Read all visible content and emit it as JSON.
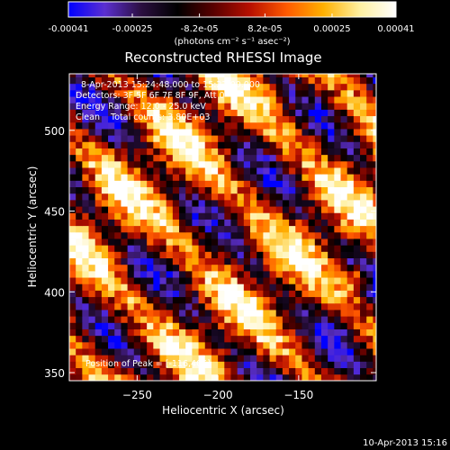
{
  "figure": {
    "title": "Reconstructed RHESSI Image",
    "timestamp": "10-Apr-2013 15:16"
  },
  "colorbar": {
    "ticks": [
      "-0.00041",
      "-0.00025",
      "-8.2e-05",
      "8.2e-05",
      "0.00025",
      "0.00041"
    ],
    "range": [
      -0.00041,
      0.00041
    ],
    "unit_label": "(photons cm⁻² s⁻¹ asec⁻²)"
  },
  "annotations": {
    "time_range": "8-Apr-2013 15:24:48.000 to 15:27:00.000",
    "detectors": "Detectors: 3F 5F 6F 7F 8F 9F, Att 0",
    "energy": "Energy Range: 12.0 - 25.0 keV",
    "clean": "Clean    Total counts: 3.80E+03",
    "peak": "Position of Peak = [-116,405]"
  },
  "colors": {
    "background": "#000000",
    "frame": "#ffffff",
    "colormap": [
      "#0000ff",
      "#5b2fd0",
      "#2b0f40",
      "#000000",
      "#5a0000",
      "#b81000",
      "#ff5a00",
      "#ffb000",
      "#fff0a0",
      "#ffffff"
    ]
  },
  "chart_data": {
    "type": "heatmap",
    "title": "Reconstructed RHESSI Image",
    "xlabel": "Heliocentric X (arcsec)",
    "ylabel": "Heliocentric Y (arcsec)",
    "xlim": [
      -292,
      -102
    ],
    "ylim": [
      345,
      535
    ],
    "xticks": [
      -250,
      -200,
      -150
    ],
    "yticks": [
      350,
      400,
      450,
      500
    ],
    "x_tick_labels": [
      "−250",
      "−200",
      "−150"
    ],
    "y_tick_labels": [
      "350",
      "400",
      "450",
      "500"
    ],
    "value_range": [
      -0.00041,
      0.00041
    ],
    "peak_position": [
      -116,
      405
    ],
    "grid": false,
    "pixel_size_arcsec": 4
  }
}
